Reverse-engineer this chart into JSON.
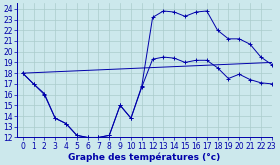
{
  "title": "Graphe des températures (°c)",
  "bg_color": "#cce8ec",
  "grid_color": "#aacccc",
  "line_color": "#0000aa",
  "marker_color": "#0000aa",
  "xlim": [
    -0.5,
    23
  ],
  "ylim": [
    12,
    24.5
  ],
  "xticks": [
    0,
    1,
    2,
    3,
    4,
    5,
    6,
    7,
    8,
    9,
    10,
    11,
    12,
    13,
    14,
    15,
    16,
    17,
    18,
    19,
    20,
    21,
    22,
    23
  ],
  "yticks": [
    12,
    13,
    14,
    15,
    16,
    17,
    18,
    19,
    20,
    21,
    22,
    23,
    24
  ],
  "curve1_x": [
    0,
    1,
    2,
    3,
    4,
    5,
    6,
    7,
    8,
    9,
    10,
    11,
    12,
    13,
    14,
    15,
    16,
    17,
    18,
    19,
    20,
    21,
    22,
    23
  ],
  "curve1_y": [
    18,
    17,
    16,
    13.8,
    13.3,
    12.2,
    12,
    12,
    12.2,
    15,
    13.8,
    16.8,
    23.2,
    23.8,
    23.7,
    23.3,
    23.7,
    23.8,
    22,
    21.2,
    21.2,
    20.7,
    19.5,
    18.8
  ],
  "curve2_x": [
    0,
    23
  ],
  "curve2_y": [
    18,
    19
  ],
  "curve3_x": [
    0,
    1,
    2,
    3,
    4,
    5,
    6,
    7,
    8,
    9,
    10,
    11,
    12,
    13,
    14,
    15,
    16,
    17,
    18,
    19,
    20,
    21,
    22,
    23
  ],
  "curve3_y": [
    18,
    17,
    16.1,
    13.8,
    13.3,
    12.2,
    12,
    12,
    12.2,
    15,
    13.8,
    16.7,
    19.3,
    19.5,
    19.4,
    19.0,
    19.2,
    19.2,
    18.5,
    17.5,
    17.9,
    17.4,
    17.1,
    17.0
  ],
  "xlabel_fontsize": 6.5,
  "tick_fontsize": 5.5
}
